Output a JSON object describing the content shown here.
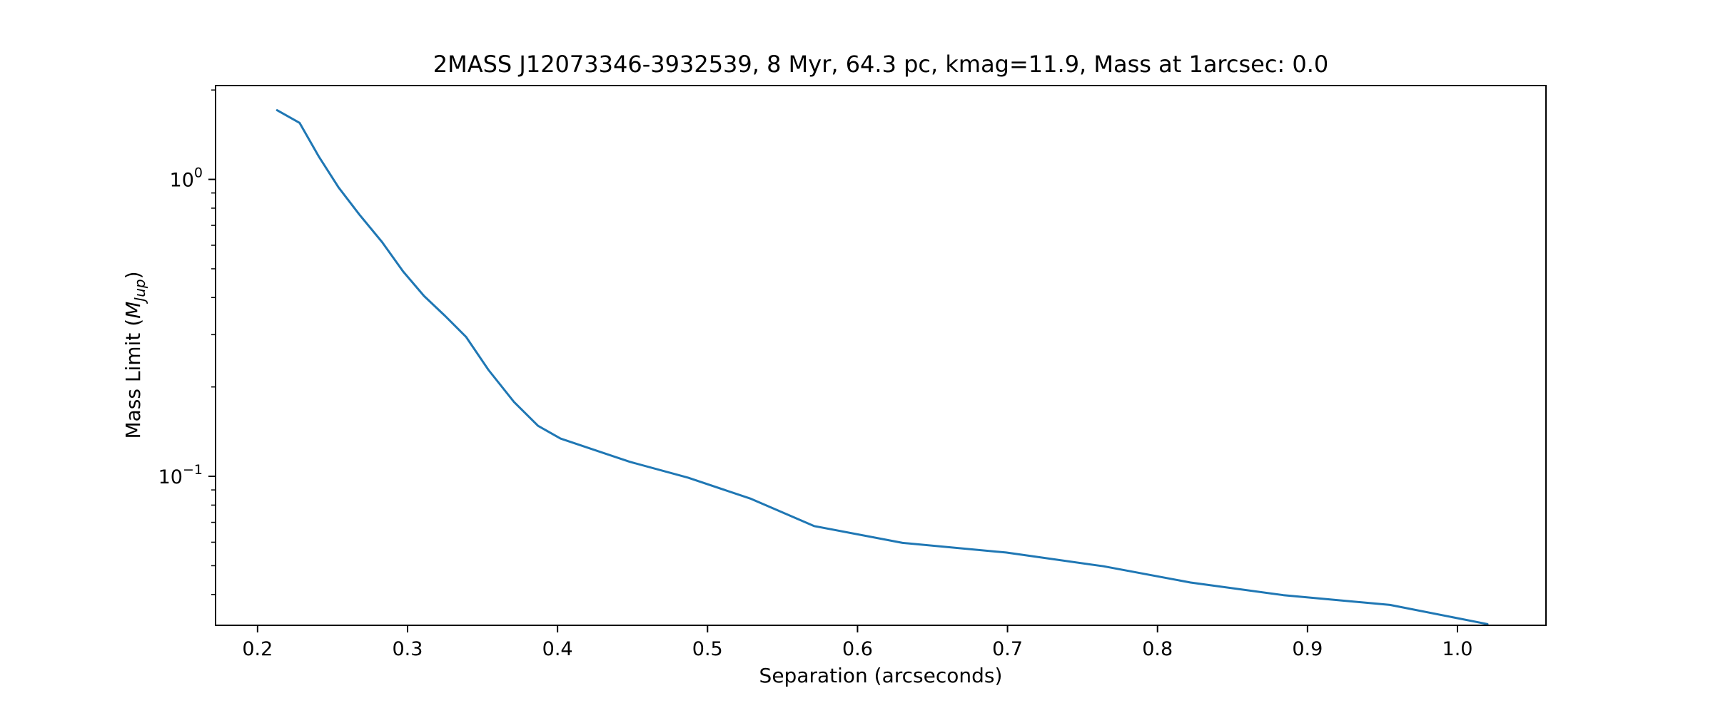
{
  "chart_data": {
    "type": "line",
    "title": "2MASS J12073346-3932539, 8 Myr, 64.3 pc, kmag=11.9, Mass at 1arcsec: 0.0",
    "xlabel": "Separation (arcseconds)",
    "ylabel": "Mass Limit (M_Jup)",
    "ylabel_prefix": "Mass Limit (",
    "ylabel_symbol": "M",
    "ylabel_subscript": "Jup",
    "ylabel_suffix": ")",
    "yscale": "log",
    "xlim": [
      0.172,
      1.059
    ],
    "ylim": [
      0.0315,
      2.07
    ],
    "xticks": [
      0.2,
      0.3,
      0.4,
      0.5,
      0.6,
      0.7,
      0.8,
      0.9,
      1.0
    ],
    "xtick_labels": [
      "0.2",
      "0.3",
      "0.4",
      "0.5",
      "0.6",
      "0.7",
      "0.8",
      "0.9",
      "1.0"
    ],
    "yticks": [
      {
        "value": 1,
        "base": "10",
        "exponent": "0"
      },
      {
        "value": 0.1,
        "base": "10",
        "exponent": "−1"
      }
    ],
    "grid": false,
    "legend": "none",
    "series": [
      {
        "color": "#1f77b4",
        "x": [
          0.213,
          0.228,
          0.241,
          0.254,
          0.268,
          0.283,
          0.297,
          0.311,
          0.325,
          0.339,
          0.354,
          0.371,
          0.387,
          0.402,
          0.448,
          0.487,
          0.529,
          0.571,
          0.63,
          0.699,
          0.764,
          0.822,
          0.884,
          0.955,
          1.02
        ],
        "y": [
          1.71,
          1.55,
          1.19,
          0.94,
          0.76,
          0.615,
          0.49,
          0.405,
          0.347,
          0.295,
          0.228,
          0.178,
          0.148,
          0.134,
          0.112,
          0.099,
          0.084,
          0.068,
          0.0597,
          0.0554,
          0.0498,
          0.0439,
          0.0398,
          0.0369,
          0.0318
        ]
      }
    ]
  }
}
